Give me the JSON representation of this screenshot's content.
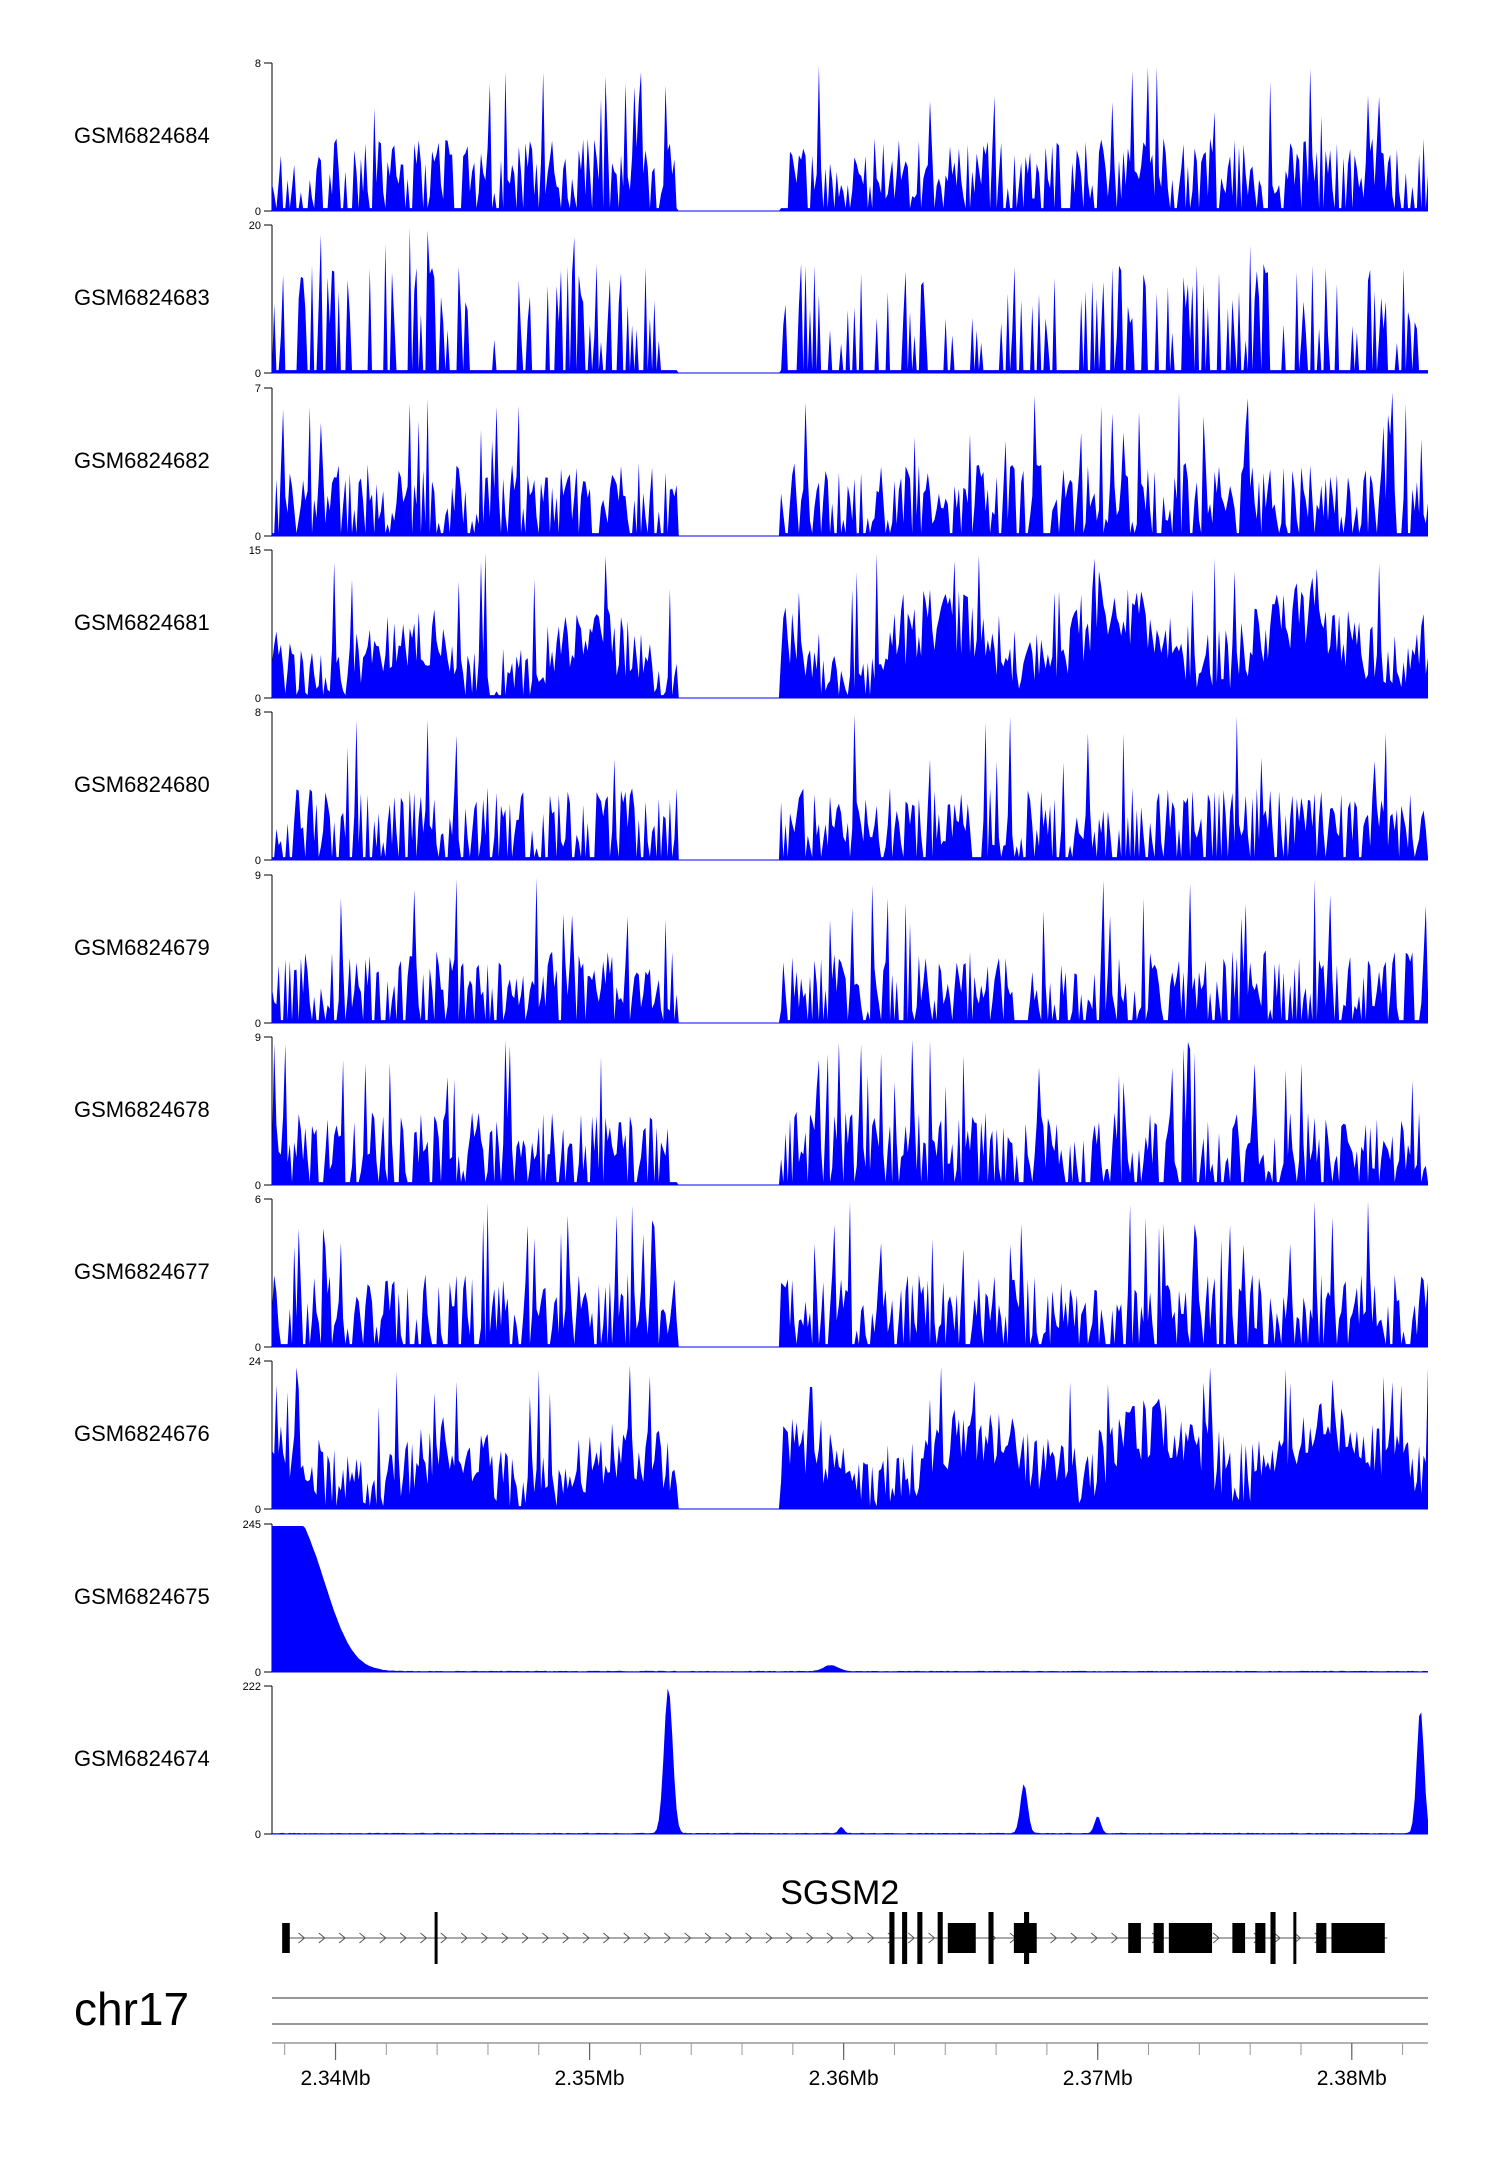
{
  "chart_data": {
    "type": "area",
    "chromosome": "chr17",
    "fill_color": "#0000ff",
    "x_range_mb": [
      2.3375,
      2.383
    ],
    "tracks": [
      {
        "label": "GSM6824684",
        "ymax": 8,
        "ymin": 0,
        "profile": "spiky",
        "seed": 1
      },
      {
        "label": "GSM6824683",
        "ymax": 20,
        "ymin": 0,
        "profile": "sparse",
        "seed": 2
      },
      {
        "label": "GSM6824682",
        "ymax": 7,
        "ymin": 0,
        "profile": "spiky",
        "seed": 3
      },
      {
        "label": "GSM6824681",
        "ymax": 15,
        "ymin": 0,
        "profile": "broad",
        "seed": 4
      },
      {
        "label": "GSM6824680",
        "ymax": 8,
        "ymin": 0,
        "profile": "spiky",
        "seed": 5
      },
      {
        "label": "GSM6824679",
        "ymax": 9,
        "ymin": 0,
        "profile": "spiky",
        "seed": 6
      },
      {
        "label": "GSM6824678",
        "ymax": 9,
        "ymin": 0,
        "profile": "spiky",
        "seed": 7
      },
      {
        "label": "GSM6824677",
        "ymax": 6,
        "ymin": 0,
        "profile": "spiky",
        "seed": 8
      },
      {
        "label": "GSM6824676",
        "ymax": 24,
        "ymin": 0,
        "profile": "broad",
        "seed": 9
      },
      {
        "label": "GSM6824675",
        "ymax": 245,
        "ymin": 0,
        "profile": "peaks",
        "seed": 10,
        "peaks": [
          {
            "pos_mb": 2.3385,
            "height": 240,
            "width_mb": 0.0011
          },
          {
            "pos_mb": 2.3376,
            "height": 180,
            "width_mb": 0.0005
          },
          {
            "pos_mb": 2.3595,
            "height": 10,
            "width_mb": 0.0003
          }
        ]
      },
      {
        "label": "GSM6824674",
        "ymax": 222,
        "ymin": 0,
        "profile": "peaks",
        "seed": 11,
        "peaks": [
          {
            "pos_mb": 2.3531,
            "height": 222,
            "width_mb": 0.00017
          },
          {
            "pos_mb": 2.3671,
            "height": 75,
            "width_mb": 0.00014
          },
          {
            "pos_mb": 2.37,
            "height": 26,
            "width_mb": 0.00012
          },
          {
            "pos_mb": 2.3827,
            "height": 190,
            "width_mb": 0.00014
          },
          {
            "pos_mb": 2.3599,
            "height": 10,
            "width_mb": 0.0001
          }
        ]
      }
    ],
    "gene": {
      "name": "SGSM2",
      "start_mb": 2.3379,
      "end_mb": 2.3814,
      "strand": "+",
      "exons": [
        [
          2.3379,
          2.3382
        ],
        [
          2.3439,
          2.344
        ],
        [
          2.3618,
          2.362
        ],
        [
          2.3623,
          2.3625
        ],
        [
          2.3629,
          2.3631
        ],
        [
          2.3637,
          2.3639
        ],
        [
          2.3641,
          2.3652
        ],
        [
          2.3657,
          2.3659
        ],
        [
          2.3667,
          2.3676
        ],
        [
          2.3671,
          2.3673
        ],
        [
          2.3712,
          2.3717
        ],
        [
          2.3722,
          2.3726
        ],
        [
          2.3728,
          2.3745
        ],
        [
          2.3753,
          2.3758
        ],
        [
          2.3762,
          2.3766
        ],
        [
          2.3768,
          2.377
        ],
        [
          2.3777,
          2.3778
        ],
        [
          2.3786,
          2.379
        ],
        [
          2.3792,
          2.3813
        ]
      ]
    },
    "axis": {
      "ticks_mb": [
        2.34,
        2.35,
        2.36,
        2.37,
        2.38
      ],
      "tick_labels": [
        "2.34Mb",
        "2.35Mb",
        "2.36Mb",
        "2.37Mb",
        "2.38Mb"
      ],
      "minor_step_mb": 0.002
    }
  }
}
